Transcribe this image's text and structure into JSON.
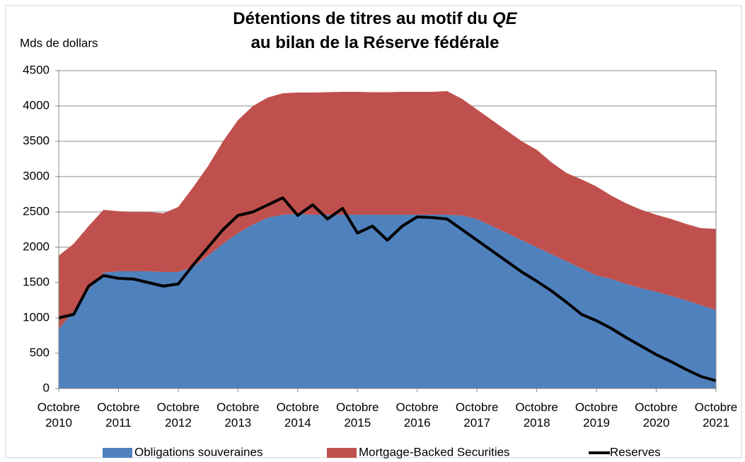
{
  "chart_data": {
    "type": "stacked-area",
    "title": {
      "line1": "Détentions de titres au motif du",
      "emphasis": "QE",
      "line2": "au bilan de la Réserve fédérale"
    },
    "y_label": "Mds de dollars",
    "categories": [
      "Octobre 2010",
      null,
      null,
      null,
      "Octobre 2011",
      null,
      null,
      null,
      "Octobre 2012",
      null,
      null,
      null,
      "Octobre 2013",
      null,
      null,
      null,
      "Octobre 2014",
      null,
      null,
      null,
      "Octobre 2015",
      null,
      null,
      null,
      "Octobre 2016",
      null,
      null,
      null,
      "Octobre 2017",
      null,
      null,
      null,
      "Octobre 2018",
      null,
      null,
      null,
      "Octobre 2019",
      null,
      null,
      null,
      "Octobre 2020",
      null,
      null,
      null,
      "Octobre 2021"
    ],
    "series": [
      {
        "name": "Obligations souveraines",
        "color": "#4f81bd",
        "values": [
          840,
          1100,
          1400,
          1640,
          1660,
          1660,
          1660,
          1650,
          1650,
          1720,
          1880,
          2050,
          2200,
          2320,
          2420,
          2460,
          2470,
          2460,
          2460,
          2460,
          2460,
          2460,
          2460,
          2460,
          2460,
          2460,
          2460,
          2450,
          2400,
          2300,
          2200,
          2100,
          2000,
          1900,
          1800,
          1700,
          1600,
          1550,
          1480,
          1420,
          1370,
          1310,
          1250,
          1180,
          1110
        ]
      },
      {
        "name": "Mortgage-Backed Securities",
        "color": "#c0504d",
        "values": [
          1040,
          950,
          900,
          890,
          850,
          840,
          840,
          830,
          920,
          1130,
          1270,
          1450,
          1600,
          1680,
          1700,
          1720,
          1720,
          1730,
          1735,
          1740,
          1740,
          1735,
          1735,
          1740,
          1740,
          1740,
          1750,
          1650,
          1550,
          1500,
          1450,
          1400,
          1380,
          1300,
          1250,
          1260,
          1260,
          1180,
          1140,
          1110,
          1090,
          1090,
          1080,
          1090,
          1150
        ]
      },
      {
        "name": "Reserves",
        "color": "#000000",
        "type": "line",
        "values": [
          1000,
          1050,
          1450,
          1600,
          1560,
          1550,
          1500,
          1450,
          1480,
          1750,
          2000,
          2250,
          2450,
          2500,
          2600,
          2700,
          2450,
          2600,
          2400,
          2550,
          2200,
          2300,
          2100,
          2300,
          2430,
          2420,
          2400,
          2250,
          2100,
          1950,
          1800,
          1650,
          1520,
          1380,
          1220,
          1050,
          960,
          850,
          720,
          600,
          480,
          380,
          270,
          170,
          110
        ]
      }
    ],
    "ylim": [
      0,
      4500
    ],
    "yticks": [
      0,
      500,
      1000,
      1500,
      2000,
      2500,
      3000,
      3500,
      4000,
      4500
    ],
    "grid": true,
    "legend": "bottom"
  }
}
